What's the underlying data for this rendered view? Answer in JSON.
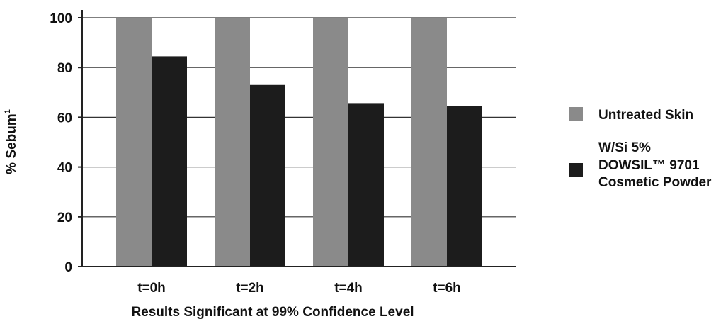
{
  "chart_data": {
    "type": "bar",
    "categories": [
      "t=0h",
      "t=2h",
      "t=4h",
      "t=6h"
    ],
    "series": [
      {
        "name": "Untreated Skin",
        "color": "#8a8a8a",
        "values": [
          100,
          100,
          100,
          100
        ]
      },
      {
        "name_lines": [
          "W/Si 5%",
          "DOWSIL™ 9701",
          "Cosmetic Powder"
        ],
        "color": "#1c1c1c",
        "values": [
          84.5,
          73,
          65.7,
          64.5
        ]
      }
    ],
    "ylabel": "% Sebum",
    "ylabel_superscript": "1",
    "xlabel": "Results Significant at 99% Confidence Level",
    "ylim": [
      0,
      100
    ],
    "yticks": [
      0,
      20,
      40,
      60,
      80,
      100
    ],
    "grid": "horizontal",
    "legend_position": "right"
  }
}
